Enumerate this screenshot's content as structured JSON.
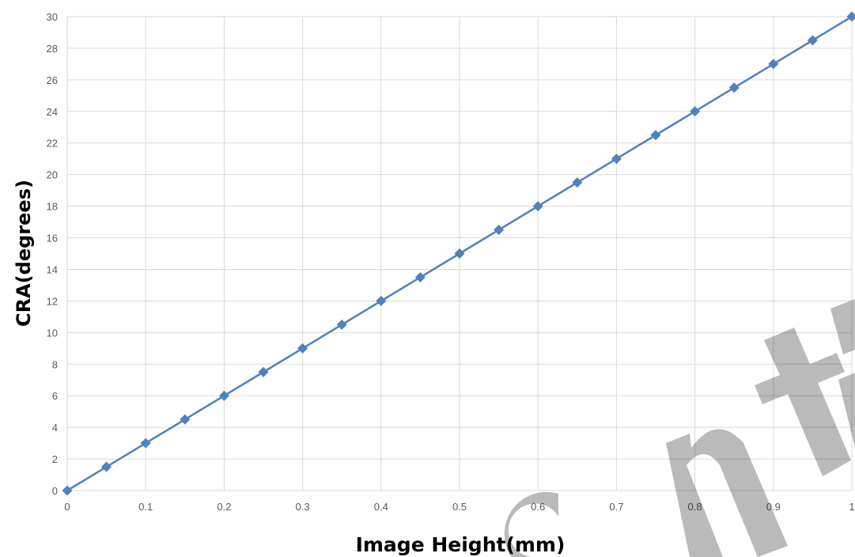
{
  "chart_data": {
    "type": "line",
    "title": "",
    "xlabel": "Image Height(mm)",
    "ylabel": "CRA(degrees)",
    "xlim": [
      0,
      1
    ],
    "ylim": [
      0,
      30
    ],
    "x_ticks": [
      "0",
      "0.1",
      "0.2",
      "0.3",
      "0.4",
      "0.5",
      "0.6",
      "0.7",
      "0.8",
      "0.9",
      "1"
    ],
    "y_ticks": [
      "0",
      "2",
      "4",
      "6",
      "8",
      "10",
      "12",
      "14",
      "16",
      "18",
      "20",
      "22",
      "24",
      "26",
      "28",
      "30"
    ],
    "grid": true,
    "legend": "none",
    "series": [
      {
        "color": "#4f81bd",
        "marker": "diamond",
        "x": [
          0,
          0.05,
          0.1,
          0.15,
          0.2,
          0.25,
          0.3,
          0.35,
          0.4,
          0.45,
          0.5,
          0.55,
          0.6,
          0.65,
          0.7,
          0.75,
          0.8,
          0.85,
          0.9,
          0.95,
          1
        ],
        "y": [
          0,
          1.5,
          3,
          4.5,
          6,
          7.5,
          9,
          10.5,
          12,
          13.5,
          15,
          16.5,
          18,
          19.5,
          21,
          22.5,
          24,
          25.5,
          27,
          28.5,
          30
        ]
      }
    ]
  }
}
